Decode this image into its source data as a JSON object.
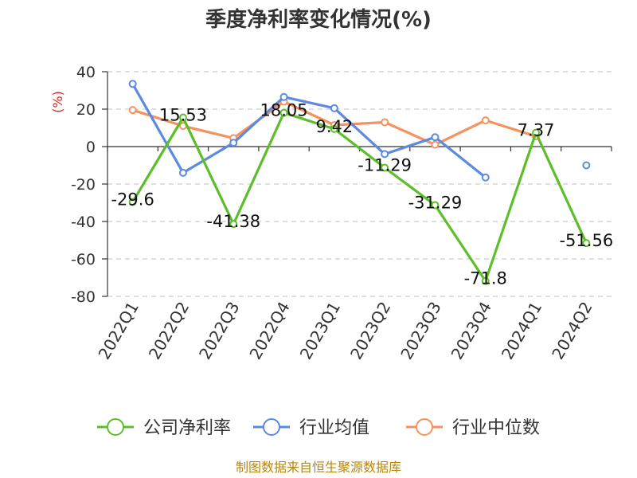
{
  "chart_data": {
    "type": "line",
    "title": "季度净利率变化情况(%)",
    "ylabel": "(%)",
    "xlabel": "",
    "categories": [
      "2022Q1",
      "2022Q2",
      "2022Q3",
      "2022Q4",
      "2023Q1",
      "2023Q2",
      "2023Q3",
      "2023Q4",
      "2024Q1",
      "2024Q2"
    ],
    "ylim": [
      -80,
      40
    ],
    "yticks": [
      40,
      20,
      0,
      -20,
      -40,
      -60,
      -80
    ],
    "grid": true,
    "legend_position": "bottom",
    "series": [
      {
        "name": "公司净利率",
        "color": "#5cbf2a",
        "show_labels": true,
        "values": [
          -29.6,
          15.53,
          -41.38,
          18.05,
          9.42,
          -11.29,
          -31.29,
          -71.8,
          7.37,
          -51.56
        ]
      },
      {
        "name": "行业均值",
        "color": "#5b8ae0",
        "show_labels": false,
        "values": [
          33.5,
          -14,
          2,
          26.5,
          20.5,
          -4,
          5,
          -16.5,
          null,
          -10
        ]
      },
      {
        "name": "行业中位数",
        "color": "#f5925e",
        "show_labels": false,
        "values": [
          19.5,
          11,
          4.5,
          24,
          11.5,
          13,
          1,
          14,
          5.5,
          null
        ]
      }
    ]
  },
  "source": "制图数据来自恒生聚源数据库"
}
